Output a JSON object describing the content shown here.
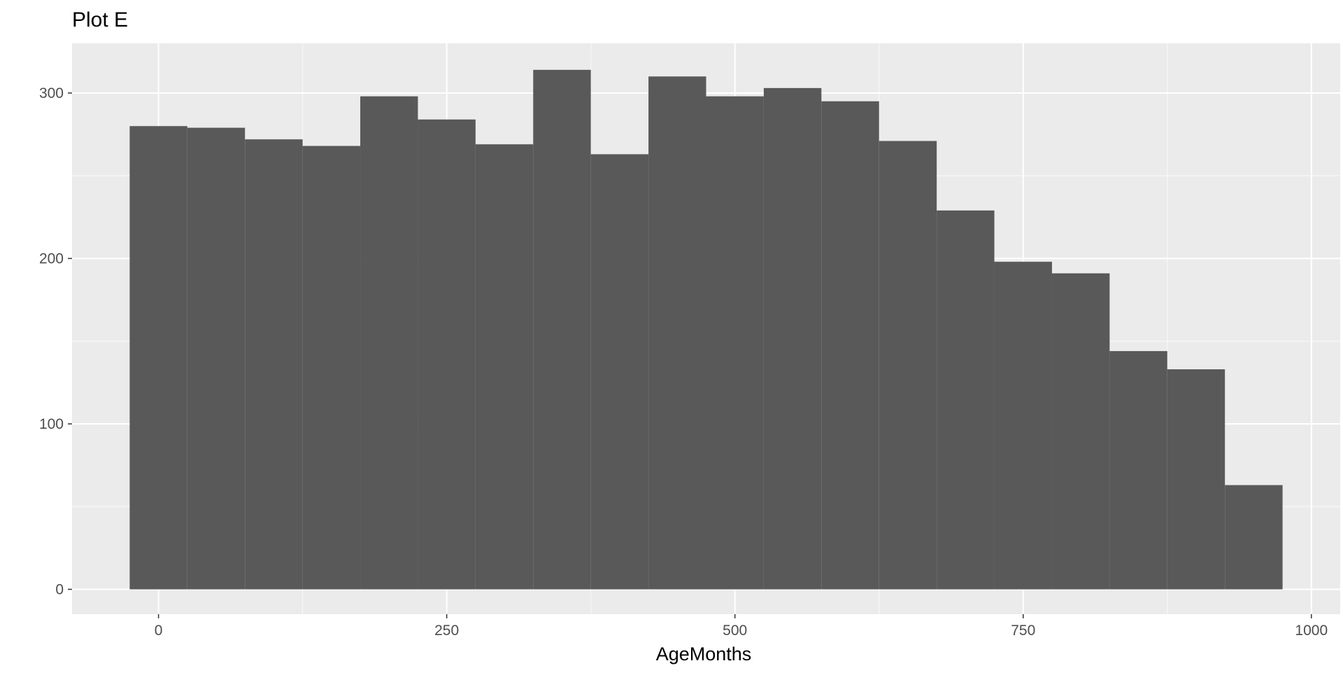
{
  "chart_data": {
    "type": "bar",
    "title": "Plot E",
    "xlabel": "AgeMonths",
    "ylabel": "",
    "bin_width": 50,
    "bins": [
      {
        "start": -25,
        "end": 25,
        "count": 280
      },
      {
        "start": 25,
        "end": 75,
        "count": 279
      },
      {
        "start": 75,
        "end": 125,
        "count": 272
      },
      {
        "start": 125,
        "end": 175,
        "count": 268
      },
      {
        "start": 175,
        "end": 225,
        "count": 298
      },
      {
        "start": 225,
        "end": 275,
        "count": 284
      },
      {
        "start": 275,
        "end": 325,
        "count": 269
      },
      {
        "start": 325,
        "end": 375,
        "count": 314
      },
      {
        "start": 375,
        "end": 425,
        "count": 263
      },
      {
        "start": 425,
        "end": 475,
        "count": 310
      },
      {
        "start": 475,
        "end": 525,
        "count": 298
      },
      {
        "start": 525,
        "end": 575,
        "count": 303
      },
      {
        "start": 575,
        "end": 625,
        "count": 295
      },
      {
        "start": 625,
        "end": 675,
        "count": 271
      },
      {
        "start": 675,
        "end": 725,
        "count": 229
      },
      {
        "start": 725,
        "end": 775,
        "count": 198
      },
      {
        "start": 775,
        "end": 825,
        "count": 191
      },
      {
        "start": 825,
        "end": 875,
        "count": 144
      },
      {
        "start": 875,
        "end": 925,
        "count": 133
      },
      {
        "start": 925,
        "end": 975,
        "count": 63
      }
    ],
    "xlim": [
      -75,
      1025
    ],
    "ylim": [
      -15,
      330
    ],
    "x_ticks": [
      0,
      250,
      500,
      750,
      1000
    ],
    "x_tick_labels": [
      "0",
      "250",
      "500",
      "750",
      "1000"
    ],
    "y_ticks": [
      0,
      100,
      200,
      300
    ],
    "y_tick_labels": [
      "0",
      "100",
      "200",
      "300"
    ],
    "grid": true,
    "legend": "none",
    "colors": {
      "bar_fill": "#595959",
      "panel_background": "#ebebeb",
      "grid_major": "#ffffff",
      "grid_minor": "#f7f7f7",
      "tick_text": "#4d4d4d",
      "tick_mark": "#333333"
    }
  }
}
